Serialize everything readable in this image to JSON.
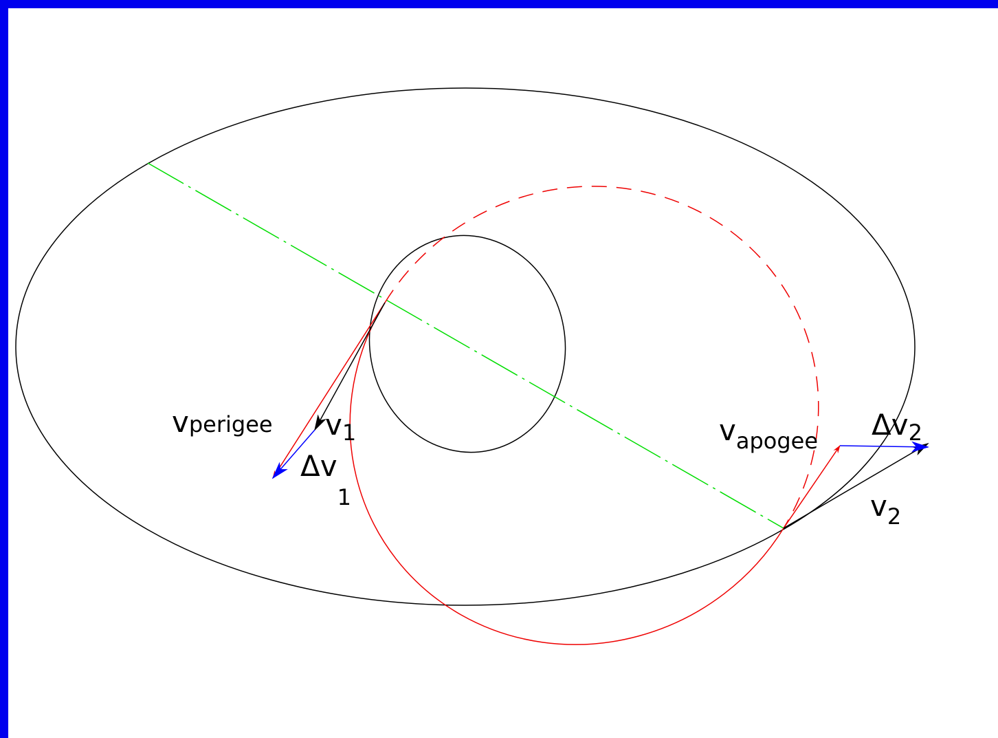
{
  "labels": [
    {
      "base": "v",
      "sub": "perigee"
    },
    {
      "base": "v",
      "sub": "1"
    },
    {
      "base": "Δv",
      "sub": "1"
    },
    {
      "base": "v",
      "sub": "apogee"
    },
    {
      "base": "Δv",
      "sub": "2"
    },
    {
      "base": "v",
      "sub": "2"
    }
  ]
}
